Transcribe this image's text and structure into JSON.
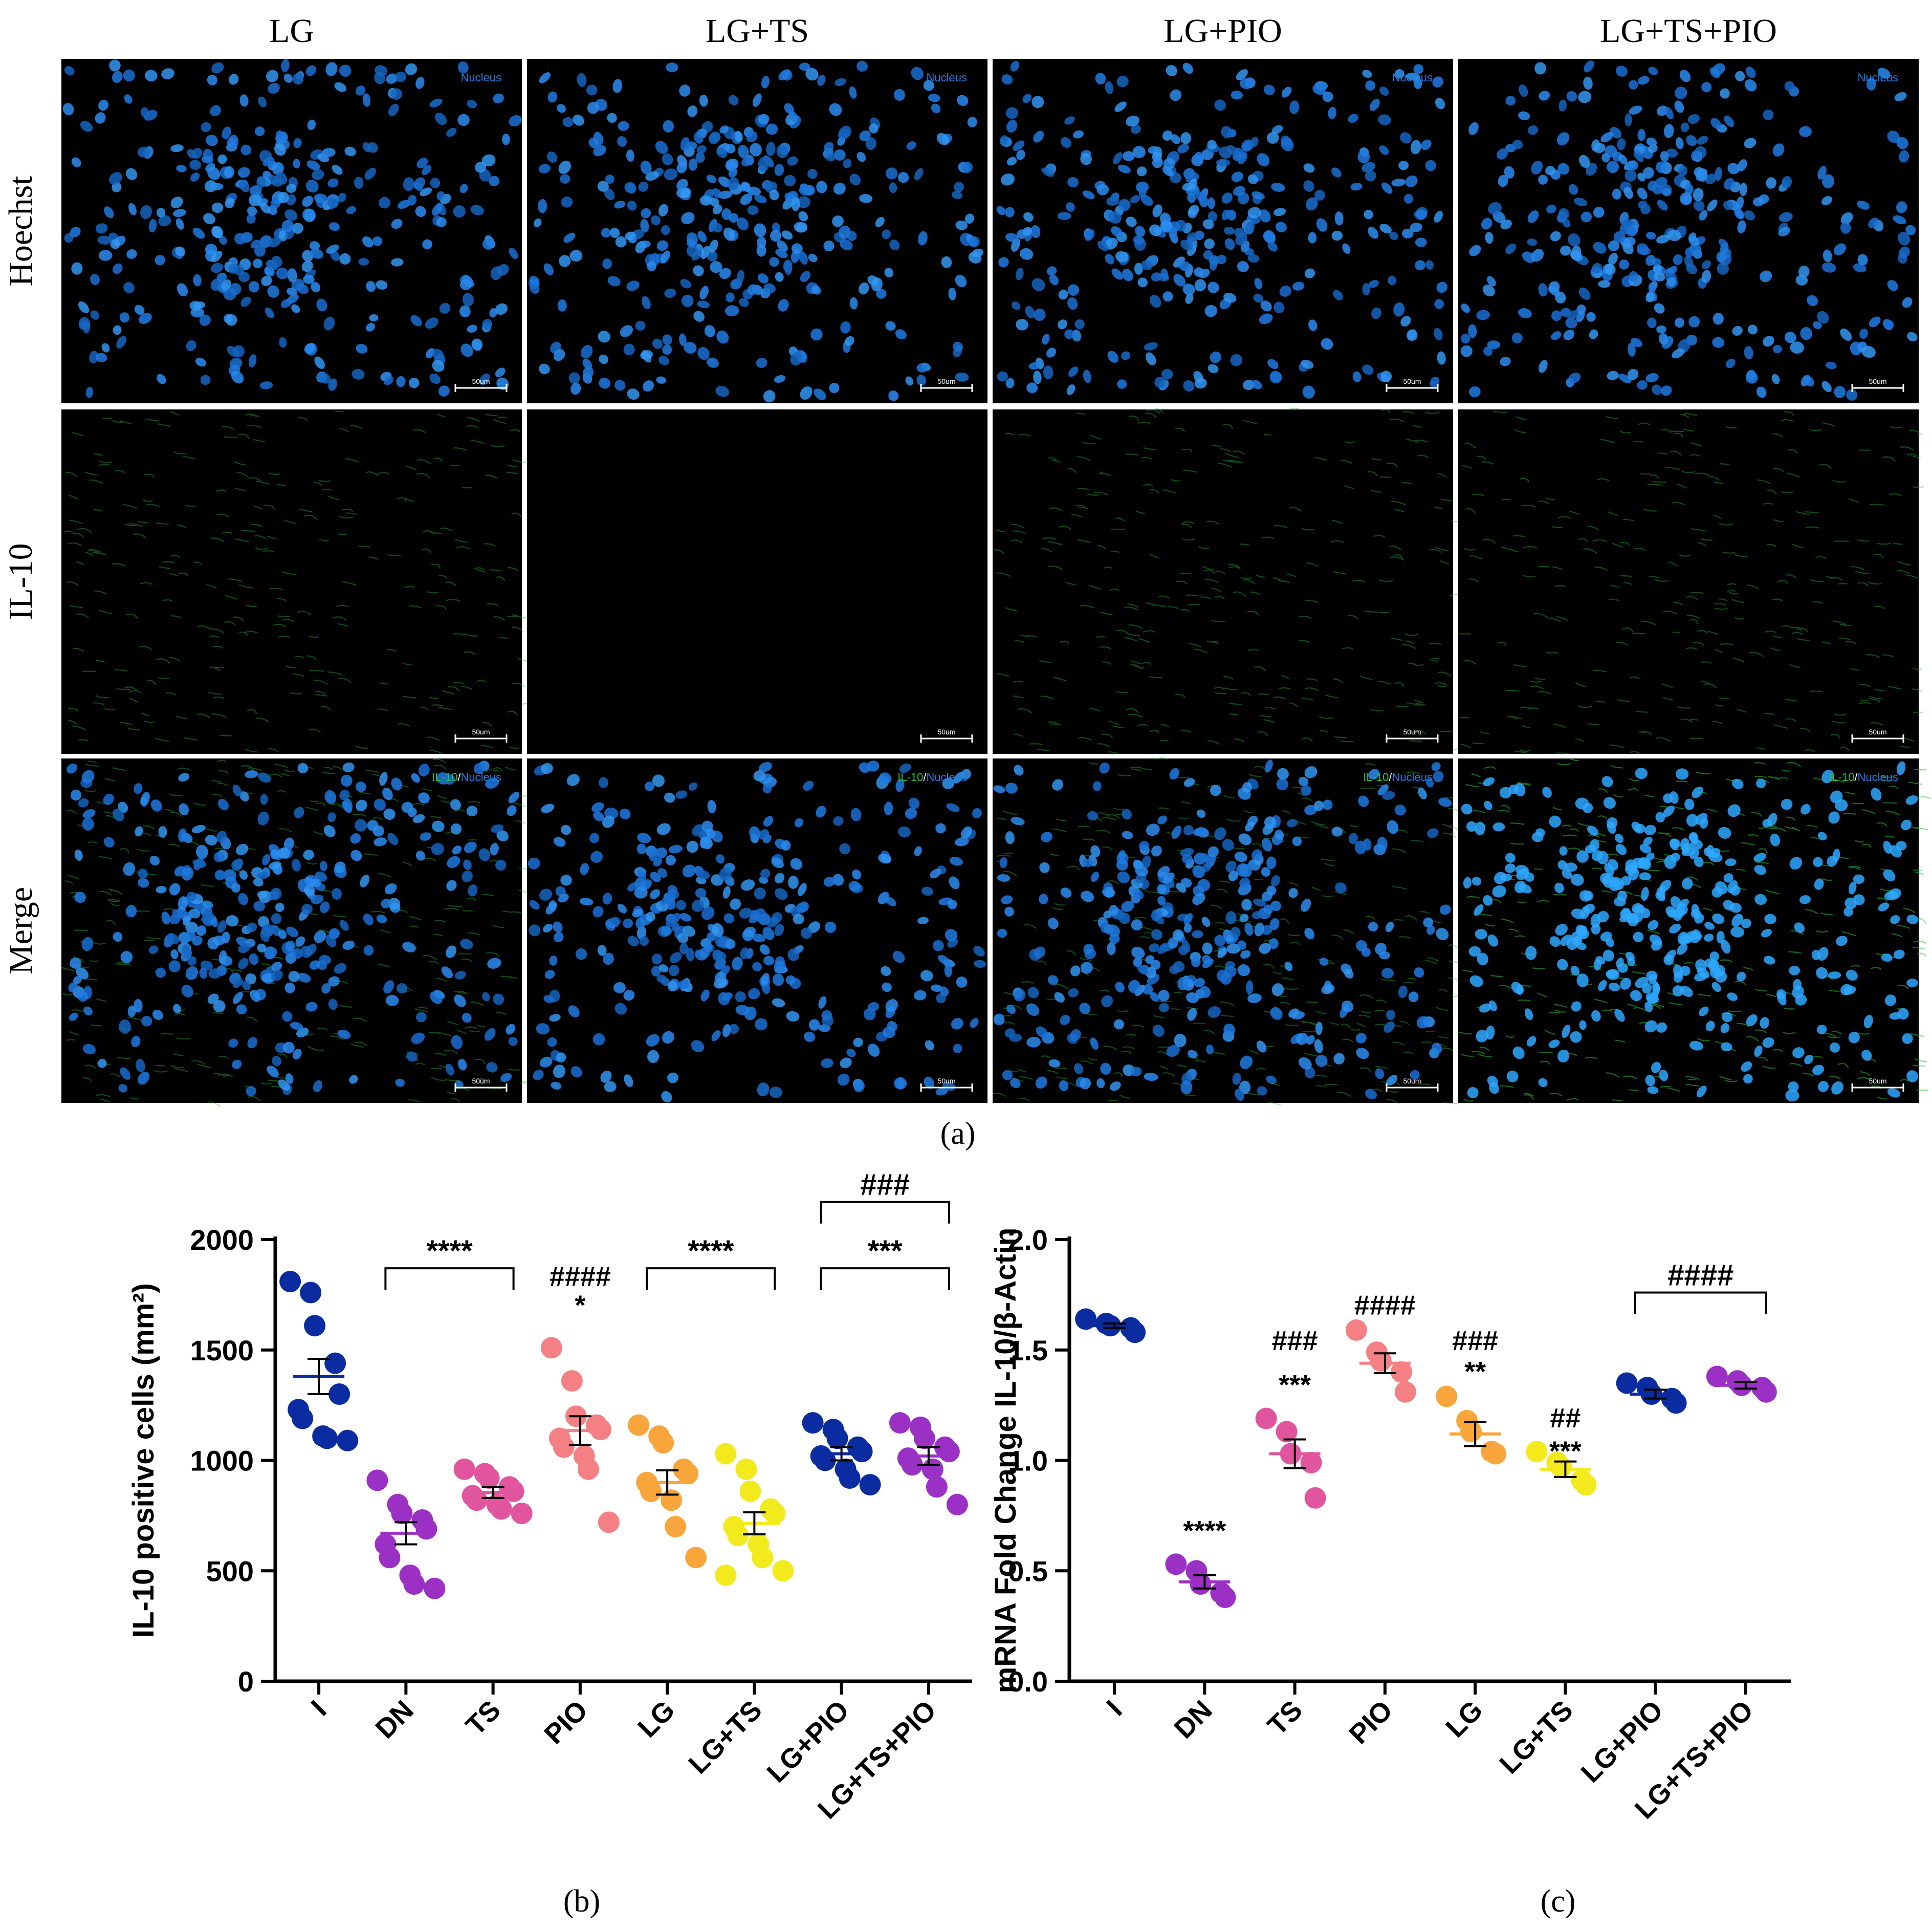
{
  "panel_a": {
    "columns": [
      "LG",
      "LG+TS",
      "LG+PIO",
      "LG+TS+PIO"
    ],
    "rows": [
      "Hoechst",
      "IL-10",
      "Merge"
    ],
    "stain_labels": {
      "nucleus": "Nucleus",
      "il10": "IL-10",
      "separator": "/"
    },
    "scale_bar": "50um",
    "colors": {
      "nucleus": "#1f7fe6",
      "il10": "#2fbf3a"
    }
  },
  "captions": {
    "a": "(a)",
    "b": "(b)",
    "c": "(c)"
  },
  "chart_data": [
    {
      "type": "scatter",
      "ylabel": "IL-10 positive cells (mm²)",
      "ylim": [
        0,
        2000
      ],
      "yticks": [
        0,
        500,
        1000,
        1500,
        2000
      ],
      "categories": [
        "I",
        "DN",
        "TS",
        "PIO",
        "LG",
        "LG+TS",
        "LG+PIO",
        "LG+TS+PIO"
      ],
      "colors": [
        "#0a2ca0",
        "#9b30c4",
        "#e0559e",
        "#f48083",
        "#f8a53c",
        "#f2ea1c",
        "#0a2ca0",
        "#9b30c4"
      ],
      "means": [
        1380,
        670,
        855,
        1135,
        900,
        715,
        1030,
        1020
      ],
      "sems": [
        80,
        50,
        25,
        65,
        55,
        50,
        30,
        40
      ],
      "points": [
        [
          1810,
          1760,
          1610,
          1440,
          1300,
          1230,
          1190,
          1110,
          1100,
          1090
        ],
        [
          910,
          800,
          760,
          730,
          690,
          620,
          560,
          480,
          440,
          420
        ],
        [
          960,
          940,
          920,
          880,
          860,
          840,
          820,
          800,
          780,
          760
        ],
        [
          1510,
          1360,
          1200,
          1160,
          1140,
          1100,
          1060,
          1020,
          960,
          720
        ],
        [
          1160,
          1110,
          1080,
          960,
          940,
          900,
          860,
          820,
          700,
          560
        ],
        [
          1030,
          960,
          860,
          780,
          760,
          700,
          660,
          620,
          560,
          500,
          480
        ],
        [
          1170,
          1140,
          1100,
          1060,
          1040,
          1020,
          1000,
          960,
          920,
          890
        ],
        [
          1170,
          1150,
          1100,
          1060,
          1040,
          1010,
          980,
          960,
          880,
          800
        ]
      ],
      "annotations": [
        {
          "text": "****",
          "from": 1,
          "to": 2,
          "y": 1870,
          "bracket": true
        },
        {
          "text": "####",
          "from": 3,
          "to": 3,
          "y": 1790,
          "bracket": false
        },
        {
          "text": "*",
          "from": 3,
          "to": 3,
          "y": 1660,
          "bracket": false
        },
        {
          "text": "****",
          "from": 4,
          "to": 5,
          "y": 1870,
          "bracket": true
        },
        {
          "text": "###",
          "from": 6,
          "to": 7,
          "y": 2170,
          "bracket": true
        },
        {
          "text": "***",
          "from": 6,
          "to": 7,
          "y": 1870,
          "bracket": true
        }
      ]
    },
    {
      "type": "scatter",
      "ylabel": "mRNA Fold Change IL-10/β-Actin",
      "ylim": [
        0,
        2.0
      ],
      "yticks": [
        "0.0",
        "0.5",
        "1.0",
        "1.5",
        "2.0"
      ],
      "categories": [
        "I",
        "DN",
        "TS",
        "PIO",
        "LG",
        "LG+TS",
        "LG+PIO",
        "LG+TS+PIO"
      ],
      "colors": [
        "#0a2ca0",
        "#9b30c4",
        "#e0559e",
        "#f48083",
        "#f8a53c",
        "#f2ea1c",
        "#0a2ca0",
        "#9b30c4"
      ],
      "means": [
        1.61,
        0.45,
        1.03,
        1.44,
        1.12,
        0.96,
        1.3,
        1.34
      ],
      "sems": [
        0.01,
        0.03,
        0.065,
        0.045,
        0.055,
        0.035,
        0.02,
        0.015
      ],
      "points": [
        [
          1.64,
          1.62,
          1.61,
          1.6,
          1.58
        ],
        [
          0.53,
          0.5,
          0.44,
          0.4,
          0.38
        ],
        [
          1.19,
          1.13,
          1.03,
          0.99,
          0.83
        ],
        [
          1.59,
          1.49,
          1.45,
          1.4,
          1.31
        ],
        [
          1.29,
          1.18,
          1.13,
          1.04,
          1.03
        ],
        [
          1.04,
          0.99,
          0.97,
          0.91,
          0.89
        ],
        [
          1.35,
          1.33,
          1.3,
          1.28,
          1.26
        ],
        [
          1.38,
          1.36,
          1.34,
          1.33,
          1.31
        ]
      ],
      "annotations": [
        {
          "text": "****",
          "from": 1,
          "to": 1,
          "y": 0.64,
          "bracket": false
        },
        {
          "text": "###",
          "from": 2,
          "to": 2,
          "y": 1.5,
          "bracket": false
        },
        {
          "text": "***",
          "from": 2,
          "to": 2,
          "y": 1.3,
          "bracket": false
        },
        {
          "text": "####",
          "from": 3,
          "to": 3,
          "y": 1.66,
          "bracket": false
        },
        {
          "text": "###",
          "from": 4,
          "to": 4,
          "y": 1.5,
          "bracket": false
        },
        {
          "text": "**",
          "from": 4,
          "to": 4,
          "y": 1.36,
          "bracket": false
        },
        {
          "text": "##",
          "from": 5,
          "to": 5,
          "y": 1.15,
          "bracket": false
        },
        {
          "text": "***",
          "from": 5,
          "to": 5,
          "y": 1.0,
          "bracket": false,
          "below": true
        },
        {
          "text": "####",
          "from": 6,
          "to": 7,
          "y": 1.76,
          "bracket": true
        }
      ]
    }
  ]
}
